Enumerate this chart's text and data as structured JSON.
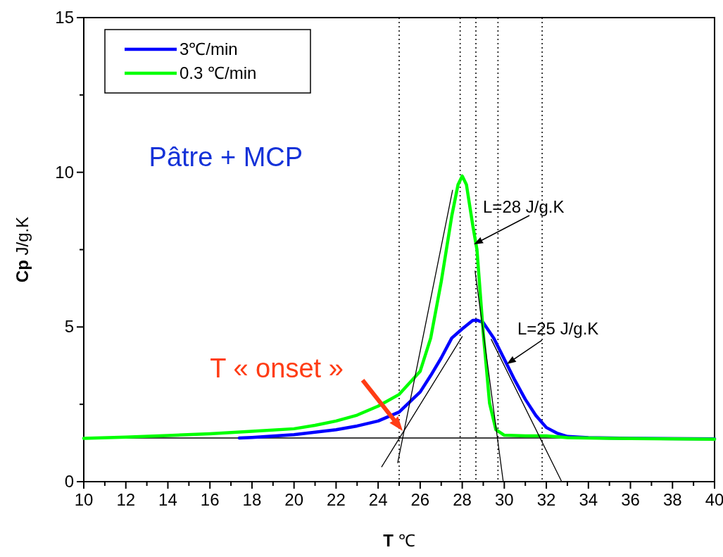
{
  "chart_data": {
    "type": "line",
    "xlabel": "T ℃",
    "ylabel": "Cp J/g.K",
    "xlim": [
      10,
      40
    ],
    "ylim": [
      0,
      15
    ],
    "xticks": [
      10,
      {
        "value": 11,
        "label": null
      },
      12,
      {
        "value": 13,
        "label": null
      },
      14,
      {
        "value": 15,
        "label": null
      },
      16,
      {
        "value": 17,
        "label": null
      },
      18,
      {
        "value": 19,
        "label": null
      },
      20,
      {
        "value": 21,
        "label": null
      },
      22,
      {
        "value": 23,
        "label": null
      },
      24,
      {
        "value": 25,
        "label": null
      },
      26,
      {
        "value": 27,
        "label": null
      },
      28,
      {
        "value": 29,
        "label": null
      },
      30,
      {
        "value": 31,
        "label": null
      },
      32,
      {
        "value": 33,
        "label": null
      },
      34,
      {
        "value": 35,
        "label": null
      },
      36,
      {
        "value": 37,
        "label": null
      },
      38,
      {
        "value": 39,
        "label": null
      },
      40
    ],
    "yticks": [
      0,
      {
        "value": 2.5,
        "label": null
      },
      5,
      {
        "value": 7.5,
        "label": null
      },
      10,
      {
        "value": 12.5,
        "label": null
      },
      15
    ],
    "legend": "top left",
    "marker": "none",
    "ref_lines": [
      {
        "axis": "y",
        "value": 1.41,
        "color": "#000000",
        "line_style": "solid"
      },
      {
        "axis": "x",
        "value": 25.0,
        "color": "#000000",
        "line_style": "dotted"
      },
      {
        "axis": "x",
        "value": 27.9,
        "color": "#000000",
        "line_style": "dotted"
      },
      {
        "axis": "x",
        "value": 28.65,
        "color": "#000000",
        "line_style": "dotted"
      },
      {
        "axis": "x",
        "value": 29.7,
        "color": "#000000",
        "line_style": "dotted"
      },
      {
        "axis": "x",
        "value": 31.8,
        "color": "#000000",
        "line_style": "dotted"
      }
    ],
    "series": [
      {
        "name": "3℃/min",
        "color": "#0000ff",
        "x": [
          17.4,
          18,
          20,
          22,
          23,
          24,
          25,
          26,
          26.5,
          27,
          27.5,
          28,
          28.5,
          28.7,
          29,
          29.5,
          30,
          30.5,
          31,
          31.5,
          32,
          32.5,
          33,
          34,
          36,
          40
        ],
        "values": [
          1.41,
          1.43,
          1.52,
          1.68,
          1.8,
          1.96,
          2.25,
          2.9,
          3.43,
          4.0,
          4.64,
          4.94,
          5.21,
          5.22,
          5.14,
          4.64,
          3.96,
          3.28,
          2.66,
          2.14,
          1.75,
          1.57,
          1.46,
          1.42,
          1.4,
          1.38
        ]
      },
      {
        "name": "0.3 ℃/min",
        "color": "#00ff00",
        "x": [
          10,
          12,
          14,
          16,
          18,
          20,
          21,
          22,
          23,
          24,
          25,
          26,
          26.5,
          27,
          27.5,
          27.8,
          28,
          28.2,
          28.5,
          28.7,
          29,
          29.3,
          29.6,
          30,
          31,
          32,
          33,
          35,
          40
        ],
        "values": [
          1.4,
          1.44,
          1.49,
          1.55,
          1.63,
          1.71,
          1.82,
          1.96,
          2.15,
          2.44,
          2.82,
          3.57,
          4.64,
          6.46,
          8.58,
          9.6,
          9.88,
          9.6,
          8.29,
          7.5,
          4.8,
          2.53,
          1.68,
          1.5,
          1.48,
          1.48,
          1.42,
          1.4,
          1.37
        ]
      },
      {
        "color": "#000000",
        "line_style": "solid",
        "x": [
          24.93,
          27.54
        ],
        "values": [
          0.61,
          9.42
        ]
      },
      {
        "color": "#000000",
        "line_style": "solid",
        "x": [
          28.61,
          29.95
        ],
        "values": [
          6.81,
          0
        ]
      },
      {
        "color": "#000000",
        "line_style": "solid",
        "x": [
          24.17,
          28.0
        ],
        "values": [
          0.48,
          4.69
        ]
      },
      {
        "color": "#000000",
        "line_style": "solid",
        "x": [
          29.38,
          32.73
        ],
        "values": [
          4.6,
          0
        ]
      }
    ],
    "annotations": [
      "Pâtre + MCP",
      {
        "text": "L=28 J/g.K",
        "x": 28.55,
        "y": 7.67
      },
      {
        "text": "L=25 J/g.K",
        "x": 30.12,
        "y": 3.8
      },
      {
        "text": "T « onset »",
        "x": 25.17,
        "y": 1.64
      }
    ]
  }
}
